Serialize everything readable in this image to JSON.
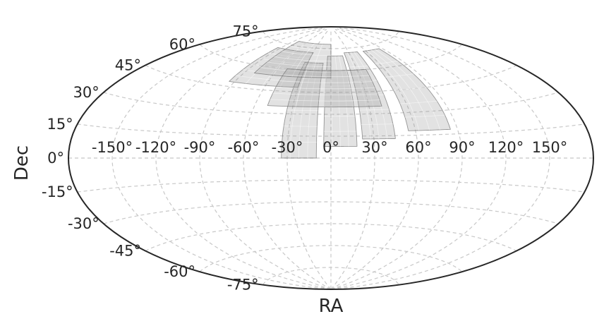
{
  "chart_data": {
    "type": "map",
    "projection": "aitoff",
    "title": "",
    "xlabel": "RA",
    "ylabel": "Dec",
    "ra_tick_labels": [
      {
        "value": -150,
        "label": "-150°"
      },
      {
        "value": -120,
        "label": "-120°"
      },
      {
        "value": -90,
        "label": "-90°"
      },
      {
        "value": -60,
        "label": "-60°"
      },
      {
        "value": -30,
        "label": "-30°"
      },
      {
        "value": 0,
        "label": "0°"
      },
      {
        "value": 30,
        "label": "30°"
      },
      {
        "value": 60,
        "label": "60°"
      },
      {
        "value": 90,
        "label": "90°"
      },
      {
        "value": 120,
        "label": "120°"
      },
      {
        "value": 150,
        "label": "150°"
      }
    ],
    "dec_tick_labels": [
      {
        "value": 75,
        "label": "75°"
      },
      {
        "value": 60,
        "label": "60°"
      },
      {
        "value": 45,
        "label": "45°"
      },
      {
        "value": 30,
        "label": "30°"
      },
      {
        "value": 15,
        "label": "15°"
      },
      {
        "value": 0,
        "label": "0°"
      },
      {
        "value": -15,
        "label": "-15°"
      },
      {
        "value": -30,
        "label": "-30°"
      },
      {
        "value": -45,
        "label": "-45°"
      },
      {
        "value": -60,
        "label": "-60°"
      },
      {
        "value": -75,
        "label": "-75°"
      }
    ],
    "grid": true,
    "footprints": [
      {
        "ra_min": -34,
        "ra_max": -10,
        "dec_min": 0,
        "dec_max": 65
      },
      {
        "ra_min": -5,
        "ra_max": 18,
        "dec_min": 8,
        "dec_max": 70
      },
      {
        "ra_min": 22,
        "ra_max": 45,
        "dec_min": 13,
        "dec_max": 72
      },
      {
        "ra_min": 55,
        "ra_max": 85,
        "dec_min": 18,
        "dec_max": 72
      },
      {
        "ra_min": -95,
        "ra_max": -30,
        "dec_min": 48,
        "dec_max": 72
      },
      {
        "ra_min": -80,
        "ra_max": 0,
        "dec_min": 55,
        "dec_max": 78
      },
      {
        "ra_min": -50,
        "ra_max": 40,
        "dec_min": 35,
        "dec_max": 60
      }
    ]
  }
}
